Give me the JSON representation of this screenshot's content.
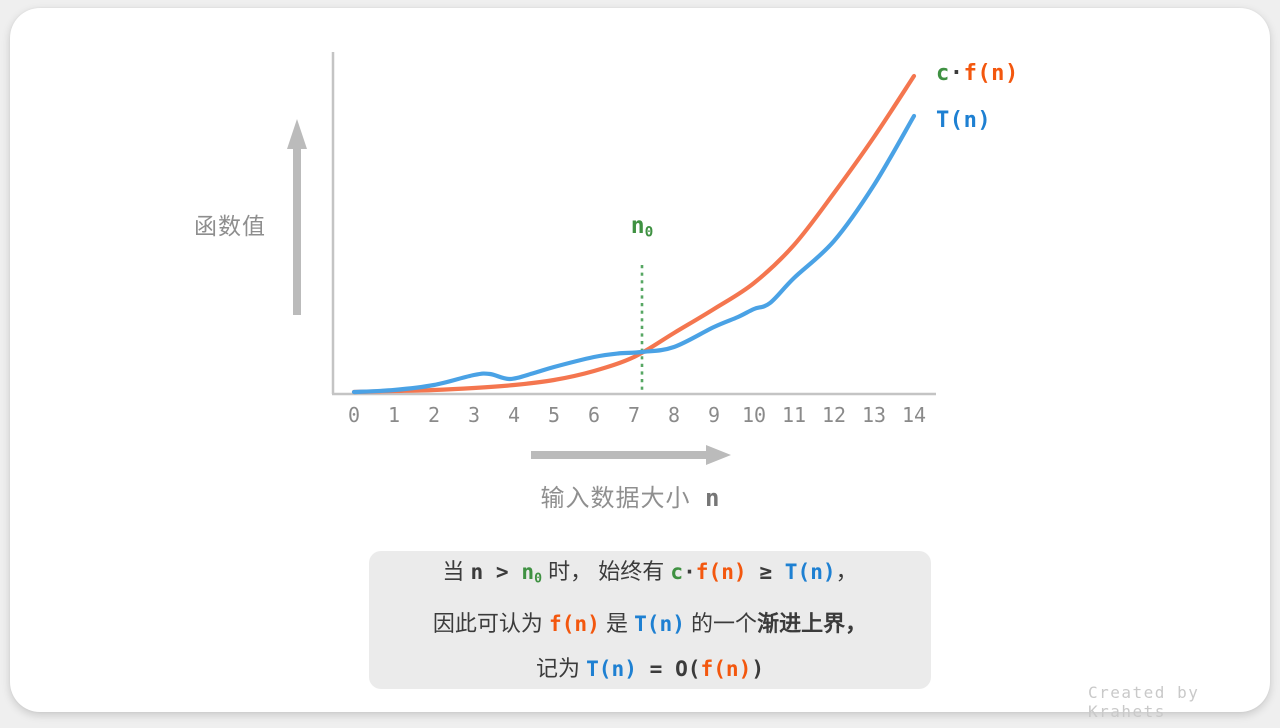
{
  "credit": "Created by Krahets",
  "colors": {
    "curve_orange": "#F4764F",
    "curve_blue": "#4AA2E5",
    "text_orange": "#F3570E",
    "text_blue": "#1E80D2",
    "text_green": "#3F9142",
    "dotted_green": "#57A763",
    "axis_gray": "#C4C4C4",
    "arrow_gray": "#BBBBBB",
    "label_gray": "#8E8E8E",
    "dark_text": "#3B3B3B",
    "note_bg": "#EBEBEB"
  },
  "chart_data": {
    "type": "line",
    "title": "",
    "xlabel": "输入数据大小 n",
    "ylabel": "函数值",
    "x_ticks": [
      "0",
      "1",
      "2",
      "3",
      "4",
      "5",
      "6",
      "7",
      "8",
      "9",
      "10",
      "11",
      "12",
      "13",
      "14"
    ],
    "xlim": [
      0,
      14
    ],
    "grid": false,
    "legend_position": "top-right",
    "annotations": [
      {
        "type": "vertical-dotted-line",
        "label": "n0",
        "x": 7.2
      }
    ],
    "series": [
      {
        "name": "c·f(n)",
        "color": "#F4764F",
        "points": [
          [
            0,
            1
          ],
          [
            1,
            2
          ],
          [
            2,
            3
          ],
          [
            3,
            5
          ],
          [
            4,
            8
          ],
          [
            5,
            13
          ],
          [
            6,
            22
          ],
          [
            7,
            36
          ],
          [
            8,
            60
          ],
          [
            9,
            84
          ],
          [
            10,
            110
          ],
          [
            11,
            148
          ],
          [
            12,
            200
          ],
          [
            13,
            256
          ],
          [
            14,
            317
          ]
        ]
      },
      {
        "name": "T(n)",
        "color": "#4AA2E5",
        "points": [
          [
            0,
            1
          ],
          [
            1,
            3
          ],
          [
            2,
            8
          ],
          [
            3,
            18
          ],
          [
            3.4,
            19
          ],
          [
            3.9,
            14
          ],
          [
            4.5,
            20
          ],
          [
            5,
            26
          ],
          [
            6,
            36
          ],
          [
            6.6,
            39.5
          ],
          [
            7.2,
            41
          ],
          [
            8,
            46
          ],
          [
            9,
            66
          ],
          [
            9.6,
            76
          ],
          [
            10,
            84
          ],
          [
            10.4,
            90
          ],
          [
            11,
            115
          ],
          [
            12,
            152
          ],
          [
            13,
            208
          ],
          [
            14,
            277
          ]
        ]
      }
    ],
    "value_units": "relative curve height (pixels above x-axis), crossing point at n0=7.2"
  },
  "labels": {
    "ylabel": "函数值",
    "xlabel_text": "输入数据大小",
    "xlabel_var": "n",
    "n0": [
      {
        "t": "n",
        "s": "green"
      },
      {
        "t": "0",
        "s": "green-sub"
      }
    ],
    "legend_cf": [
      {
        "t": "c",
        "s": "green"
      },
      {
        "t": "·",
        "s": "code"
      },
      {
        "t": "f(n)",
        "s": "orange"
      }
    ],
    "legend_tn": [
      {
        "t": "T(n)",
        "s": "blue"
      }
    ]
  },
  "note": {
    "lines": [
      [
        {
          "t": "当 ",
          "s": "plain"
        },
        {
          "t": "n",
          "s": "code"
        },
        {
          "t": " > ",
          "s": "code"
        },
        {
          "t": "n",
          "s": "green"
        },
        {
          "t": "0",
          "s": "green-sub"
        },
        {
          "t": " 时， 始终有 ",
          "s": "plain"
        },
        {
          "t": "c",
          "s": "green"
        },
        {
          "t": "·",
          "s": "code"
        },
        {
          "t": "f(n)",
          "s": "orange"
        },
        {
          "t": " ≥ ",
          "s": "code"
        },
        {
          "t": "T(n)",
          "s": "blue"
        },
        {
          "t": "，",
          "s": "plain"
        }
      ],
      [
        {
          "t": "因此可认为 ",
          "s": "plain"
        },
        {
          "t": "f(n)",
          "s": "orange"
        },
        {
          "t": " 是 ",
          "s": "plain"
        },
        {
          "t": "T(n)",
          "s": "blue"
        },
        {
          "t": " 的一个",
          "s": "plain"
        },
        {
          "t": "渐进上界",
          "s": "bold"
        },
        {
          "t": "，",
          "s": "bold"
        }
      ],
      [
        {
          "t": "记为 ",
          "s": "plain"
        },
        {
          "t": "T(n)",
          "s": "blue"
        },
        {
          "t": " = ",
          "s": "code"
        },
        {
          "t": "O(",
          "s": "code"
        },
        {
          "t": "f(n)",
          "s": "orange"
        },
        {
          "t": ")",
          "s": "code"
        }
      ]
    ]
  }
}
